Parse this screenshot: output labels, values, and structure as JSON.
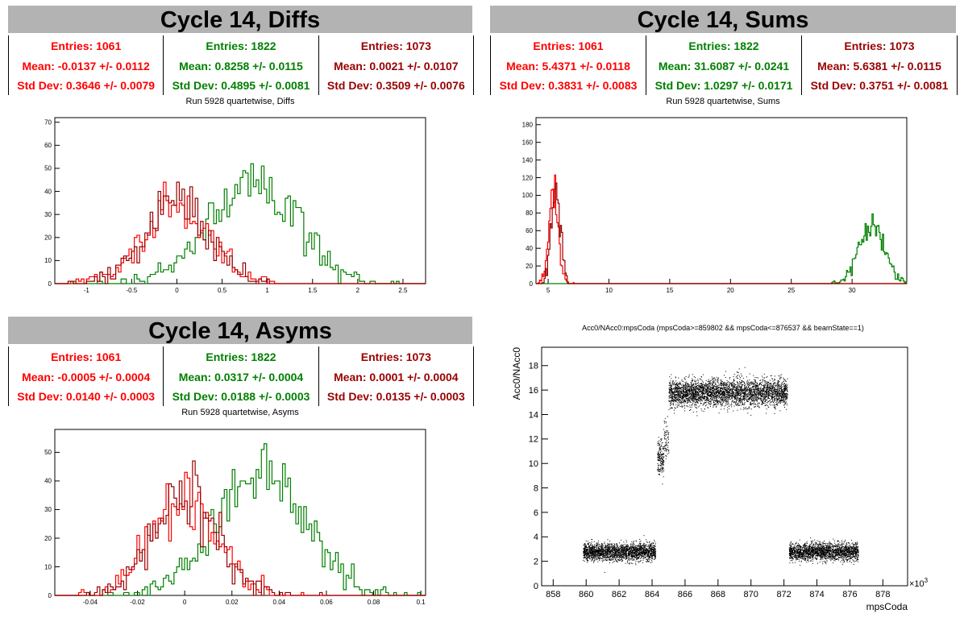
{
  "panels": {
    "diffs": {
      "title": "Cycle 14, Diffs",
      "subtitle": "Run 5928 quartetwise, Diffs",
      "stats": [
        {
          "color": "red",
          "entries": "Entries: 1061",
          "mean": "Mean: -0.0137 +/- 0.0112",
          "std": "Std Dev: 0.3646 +/- 0.0079"
        },
        {
          "color": "green",
          "entries": "Entries: 1822",
          "mean": "Mean: 0.8258 +/- 0.0115",
          "std": "Std Dev: 0.4895 +/- 0.0081"
        },
        {
          "color": "dark",
          "entries": "Entries: 1073",
          "mean": "Mean: 0.0021 +/- 0.0107",
          "std": "Std Dev: 0.3509 +/- 0.0076"
        }
      ]
    },
    "sums": {
      "title": "Cycle 14, Sums",
      "subtitle": "Run 5928 quartetwise, Sums",
      "stats": [
        {
          "color": "red",
          "entries": "Entries: 1061",
          "mean": "Mean: 5.4371 +/- 0.0118",
          "std": "Std Dev: 0.3831 +/- 0.0083"
        },
        {
          "color": "green",
          "entries": "Entries: 1822",
          "mean": "Mean: 31.6087 +/- 0.0241",
          "std": "Std Dev: 1.0297 +/- 0.0171"
        },
        {
          "color": "dark",
          "entries": "Entries: 1073",
          "mean": "Mean: 5.6381 +/- 0.0115",
          "std": "Std Dev: 0.3751 +/- 0.0081"
        }
      ]
    },
    "asyms": {
      "title": "Cycle 14, Asyms",
      "subtitle": "Run 5928 quartetwise, Asyms",
      "stats": [
        {
          "color": "red",
          "entries": "Entries: 1061",
          "mean": "Mean: -0.0005 +/- 0.0004",
          "std": "Std Dev: 0.0140 +/- 0.0003"
        },
        {
          "color": "green",
          "entries": "Entries: 1822",
          "mean": "Mean: 0.0317 +/- 0.0004",
          "std": "Std Dev: 0.0188 +/- 0.0003"
        },
        {
          "color": "dark",
          "entries": "Entries: 1073",
          "mean": "Mean: 0.0001 +/- 0.0004",
          "std": "Std Dev: 0.0135 +/- 0.0003"
        }
      ]
    },
    "scatter": {
      "title": "Acc0/NAcc0:mpsCoda (mpsCoda>=859802 && mpsCoda<=876537 && beamState==1)"
    }
  },
  "colors": {
    "red": "#ff0000",
    "green": "#008000",
    "dark": "#990000"
  },
  "chart_data": [
    {
      "type": "bar",
      "id": "diffs",
      "title": "Run 5928 quartetwise, Diffs",
      "xlim": [
        -1.35,
        2.75
      ],
      "ylim": [
        0,
        72
      ],
      "xticks": [
        -1,
        -0.5,
        0,
        0.5,
        1,
        1.5,
        2,
        2.5
      ],
      "xtick_labels": [
        "-1",
        "-0.5",
        "0",
        "0.5",
        "1",
        "1.5",
        "2",
        "2.5"
      ],
      "yticks": [
        0,
        10,
        20,
        30,
        40,
        50,
        60,
        70
      ],
      "ytick_labels": [
        "0",
        "10",
        "20",
        "30",
        "40",
        "50",
        "60",
        "70"
      ],
      "series": [
        {
          "color": "green",
          "mean": 0.8258,
          "std": 0.4895,
          "entries": 1822
        },
        {
          "color": "red",
          "mean": -0.0137,
          "std": 0.3646,
          "entries": 1061
        },
        {
          "color": "dark",
          "mean": 0.0021,
          "std": 0.3509,
          "entries": 1073
        }
      ]
    },
    {
      "type": "bar",
      "id": "sums",
      "title": "Run 5928 quartetwise, Sums",
      "xlim": [
        4,
        34.5
      ],
      "ylim": [
        0,
        188
      ],
      "xticks": [
        5,
        10,
        15,
        20,
        25,
        30
      ],
      "xtick_labels": [
        "5",
        "10",
        "15",
        "20",
        "25",
        "30"
      ],
      "yticks": [
        0,
        20,
        40,
        60,
        80,
        100,
        120,
        140,
        160,
        180
      ],
      "ytick_labels": [
        "0",
        "20",
        "40",
        "60",
        "80",
        "100",
        "120",
        "140",
        "160",
        "180"
      ],
      "series": [
        {
          "color": "green",
          "mean": 31.6087,
          "std": 1.0297,
          "entries": 1822
        },
        {
          "color": "red",
          "mean": 5.4371,
          "std": 0.3831,
          "entries": 1061
        },
        {
          "color": "dark",
          "mean": 5.6381,
          "std": 0.3751,
          "entries": 1073
        }
      ]
    },
    {
      "type": "bar",
      "id": "asyms",
      "title": "Run 5928 quartetwise, Asyms",
      "xlim": [
        -0.055,
        0.102
      ],
      "ylim": [
        0,
        58
      ],
      "xticks": [
        -0.04,
        -0.02,
        0,
        0.02,
        0.04,
        0.06,
        0.08,
        0.1
      ],
      "xtick_labels": [
        "-0.04",
        "-0.02",
        "0",
        "0.02",
        "0.04",
        "0.06",
        "0.08",
        "0.1"
      ],
      "yticks": [
        0,
        10,
        20,
        30,
        40,
        50
      ],
      "ytick_labels": [
        "0",
        "10",
        "20",
        "30",
        "40",
        "50"
      ],
      "series": [
        {
          "color": "green",
          "mean": 0.0317,
          "std": 0.0188,
          "entries": 1822
        },
        {
          "color": "red",
          "mean": -0.0005,
          "std": 0.014,
          "entries": 1061
        },
        {
          "color": "dark",
          "mean": 0.0001,
          "std": 0.0135,
          "entries": 1073
        }
      ]
    },
    {
      "type": "scatter",
      "id": "acc0",
      "title": "Acc0/NAcc0:mpsCoda (mpsCoda>=859802 && mpsCoda<=876537 && beamState==1)",
      "xlabel": "mpsCoda",
      "ylabel": "Acc0/NAcc0",
      "x_multiplier": "×10",
      "x_multiplier_exp": "3",
      "xlim": [
        857.3,
        879.5
      ],
      "ylim": [
        0,
        19.5
      ],
      "xticks": [
        858,
        860,
        862,
        864,
        866,
        868,
        870,
        872,
        874,
        876,
        878
      ],
      "xtick_labels": [
        "858",
        "860",
        "862",
        "864",
        "866",
        "868",
        "870",
        "872",
        "874",
        "876",
        "878"
      ],
      "yticks": [
        0,
        2,
        4,
        6,
        8,
        10,
        12,
        14,
        16,
        18
      ],
      "ytick_labels": [
        "0",
        "2",
        "4",
        "6",
        "8",
        "10",
        "12",
        "14",
        "16",
        "18"
      ],
      "clusters": [
        {
          "x_range": [
            859.8,
            864.2
          ],
          "y_center": 2.8,
          "y_spread": 0.35,
          "count": 2200
        },
        {
          "x_range": [
            864.3,
            864.7
          ],
          "y_center": 10.5,
          "y_spread": 0.7,
          "count": 180
        },
        {
          "x_range": [
            864.7,
            865.0
          ],
          "y_center": 12.0,
          "y_spread": 0.8,
          "count": 70
        },
        {
          "x_range": [
            865.0,
            872.2
          ],
          "y_center": 15.8,
          "y_spread": 0.55,
          "count": 3600
        },
        {
          "x_range": [
            872.3,
            876.5
          ],
          "y_center": 2.8,
          "y_spread": 0.35,
          "count": 2100
        }
      ]
    }
  ]
}
